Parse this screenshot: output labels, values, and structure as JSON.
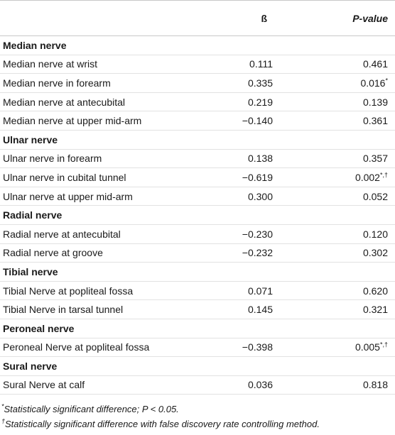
{
  "table": {
    "header": {
      "beta": "ß",
      "p": "P-value"
    },
    "groups": [
      {
        "name": "Median nerve",
        "rows": [
          {
            "label": "Median nerve at wrist",
            "beta": "0.111",
            "p": "0.461"
          },
          {
            "label": "Median nerve in forearm",
            "beta": "0.335",
            "p": "0.016",
            "note": "*"
          },
          {
            "label": "Median nerve at antecubital",
            "beta": "0.219",
            "p": "0.139"
          },
          {
            "label": "Median nerve at upper mid-arm",
            "beta": "−0.140",
            "p": "0.361"
          }
        ]
      },
      {
        "name": "Ulnar nerve",
        "rows": [
          {
            "label": "Ulnar nerve in forearm",
            "beta": "0.138",
            "p": "0.357"
          },
          {
            "label": "Ulnar nerve in cubital tunnel",
            "beta": "−0.619",
            "p": "0.002",
            "note": "*,†"
          },
          {
            "label": "Ulnar nerve at upper mid-arm",
            "beta": "0.300",
            "p": "0.052"
          }
        ]
      },
      {
        "name": "Radial nerve",
        "rows": [
          {
            "label": "Radial nerve at antecubital",
            "beta": "−0.230",
            "p": "0.120"
          },
          {
            "label": "Radial nerve at groove",
            "beta": "−0.232",
            "p": "0.302"
          }
        ]
      },
      {
        "name": "Tibial nerve",
        "rows": [
          {
            "label": "Tibial Nerve at popliteal fossa",
            "beta": "0.071",
            "p": "0.620"
          },
          {
            "label": "Tibial Nerve in tarsal tunnel",
            "beta": "0.145",
            "p": "0.321"
          }
        ]
      },
      {
        "name": "Peroneal nerve",
        "rows": [
          {
            "label": "Peroneal Nerve at popliteal fossa",
            "beta": "−0.398",
            "p": "0.005",
            "note": "*,†"
          }
        ]
      },
      {
        "name": "Sural nerve",
        "rows": [
          {
            "label": "Sural Nerve at calf",
            "beta": "0.036",
            "p": "0.818"
          }
        ]
      }
    ]
  },
  "footnotes": [
    {
      "mark": "*",
      "text": "Statistically significant difference; P < 0.05."
    },
    {
      "mark": "†",
      "text": "Statistically significant difference with false discovery rate controlling method."
    }
  ]
}
